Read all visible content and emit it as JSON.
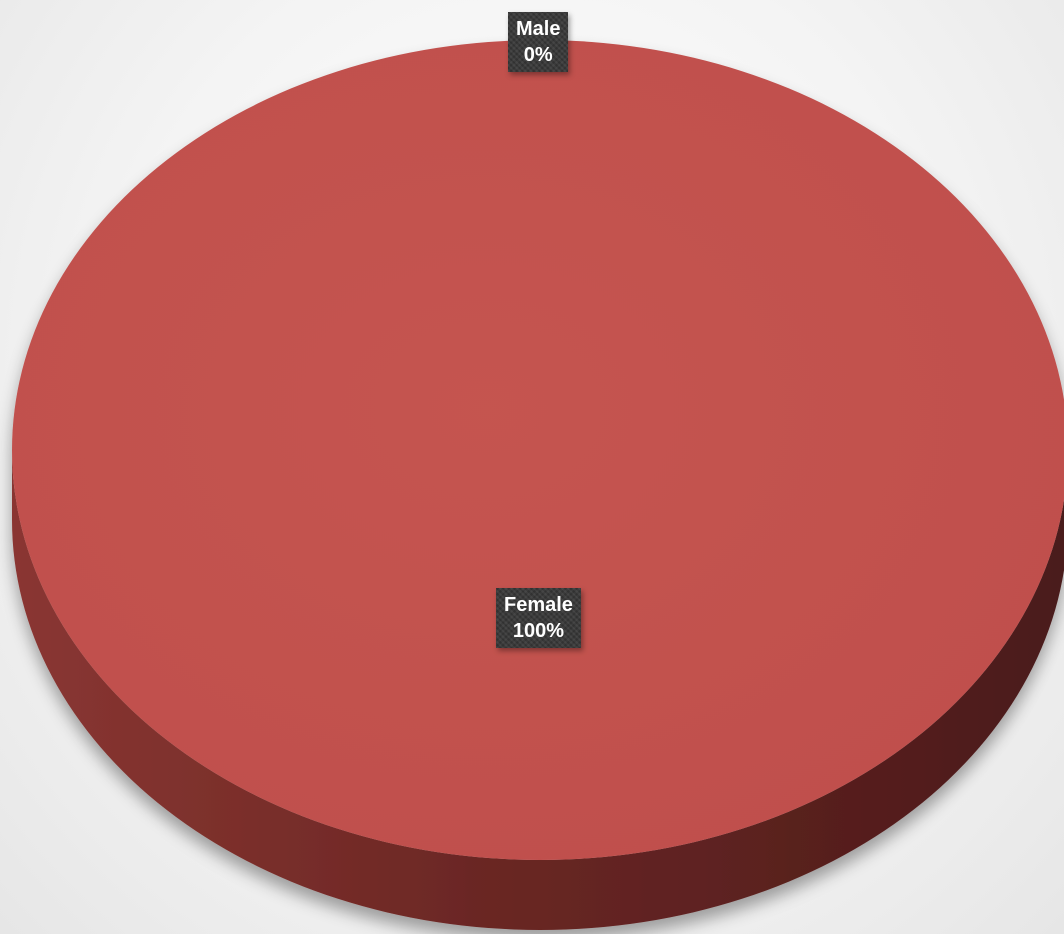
{
  "chart_data": {
    "type": "pie",
    "style": "3d",
    "categories": [
      "Male",
      "Female"
    ],
    "values": [
      0,
      100
    ],
    "labels": [
      {
        "category": "Male",
        "percent": "0%"
      },
      {
        "category": "Female",
        "percent": "100%"
      }
    ],
    "colors": {
      "Female": "#c0504d",
      "Female_side": "#7a2e2b",
      "label_bg": "#3a3a3a"
    },
    "legend": "none"
  }
}
